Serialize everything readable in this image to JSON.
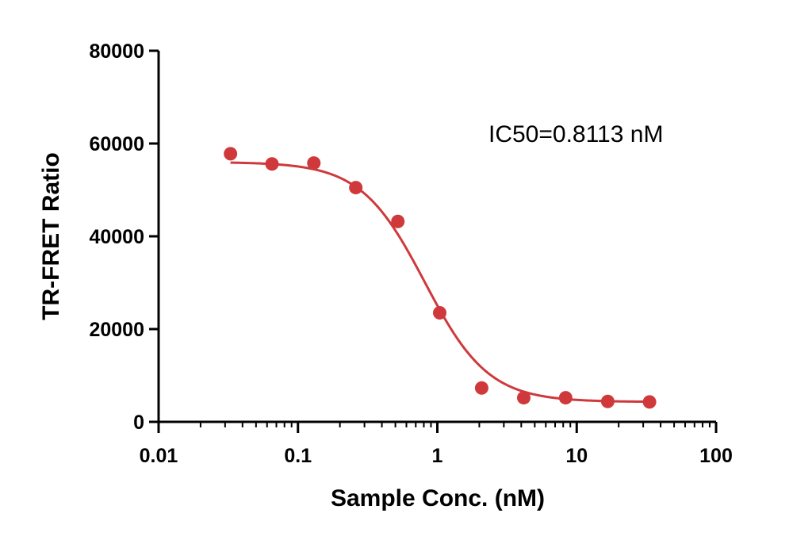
{
  "chart_data": {
    "type": "scatter",
    "xlabel": "Sample Conc. (nM)",
    "ylabel": "TR-FRET Ratio",
    "x_scale": "log",
    "xlim": [
      0.01,
      100
    ],
    "ylim": [
      0,
      80000
    ],
    "x_ticks": [
      "0.01",
      "0.1",
      "1",
      "10",
      "100"
    ],
    "y_ticks": [
      "0",
      "20000",
      "40000",
      "60000",
      "80000"
    ],
    "annotation": "IC50=0.8113 nM",
    "grid": false,
    "color": "#d0393b",
    "series": [
      {
        "x": [
          0.0328,
          0.0651,
          0.13,
          0.26,
          0.521,
          1.04,
          2.08,
          4.17,
          8.33,
          16.7,
          33.3
        ],
        "y": [
          57800,
          55600,
          55800,
          50500,
          43200,
          23500,
          7300,
          5200,
          5200,
          4400,
          4300
        ]
      }
    ],
    "fit": {
      "model": "4PL",
      "top": 56000,
      "bottom": 4300,
      "ic50": 0.8113,
      "hill": 1.9
    }
  }
}
